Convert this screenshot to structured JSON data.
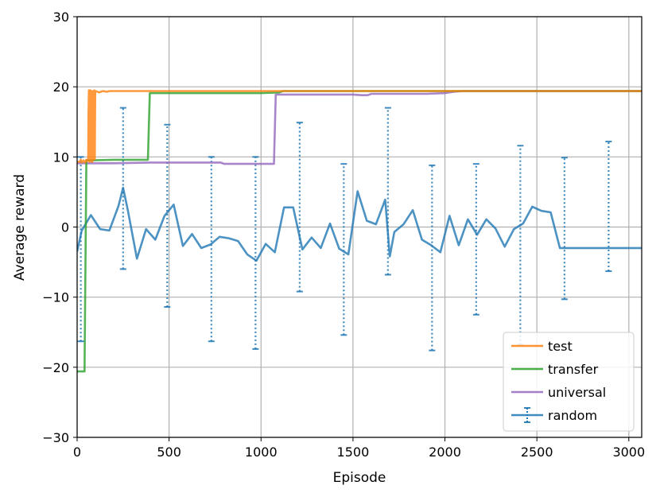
{
  "chart_data": {
    "type": "line",
    "title": "",
    "xlabel": "Episode",
    "ylabel": "Average reward",
    "xlim": [
      0,
      3070
    ],
    "ylim": [
      -30,
      30
    ],
    "xticks": [
      0,
      500,
      1000,
      1500,
      2000,
      2500,
      3000
    ],
    "yticks": [
      -30,
      -20,
      -10,
      0,
      10,
      20,
      30
    ],
    "grid": true,
    "legend_position": "lower-right",
    "series": [
      {
        "name": "test",
        "color": "#ff7f0e",
        "style": "solid",
        "x": [
          0,
          15,
          20,
          25,
          30,
          35,
          40,
          45,
          50,
          55,
          60,
          62,
          64,
          66,
          68,
          70,
          72,
          74,
          76,
          78,
          80,
          82,
          84,
          86,
          88,
          90,
          92,
          94,
          96,
          98,
          100,
          120,
          140,
          160,
          180,
          200,
          300,
          400,
          600,
          800,
          1000,
          1200,
          1500,
          2000,
          2500,
          3070
        ],
        "y": [
          9.3,
          9.3,
          9.6,
          9.2,
          9.4,
          9.5,
          9.3,
          9.2,
          9.6,
          9.4,
          9.5,
          16.0,
          19.5,
          19.2,
          9.3,
          18.8,
          19.5,
          9.4,
          19.3,
          9.5,
          19.4,
          9.3,
          19.1,
          9.6,
          19.4,
          9.6,
          19.3,
          19.5,
          9.7,
          19.2,
          19.4,
          19.2,
          19.4,
          19.3,
          19.4,
          19.4,
          19.4,
          19.4,
          19.4,
          19.4,
          19.4,
          19.4,
          19.4,
          19.4,
          19.4,
          19.4
        ]
      },
      {
        "name": "transfer",
        "color": "#2ca02c",
        "style": "solid",
        "x": [
          0,
          40,
          50,
          60,
          200,
          300,
          385,
          395,
          600,
          800,
          1000,
          1100,
          1120,
          1500,
          2000,
          2500,
          3070
        ],
        "y": [
          -20.6,
          -20.6,
          9.5,
          9.5,
          9.6,
          9.6,
          9.6,
          19.1,
          19.1,
          19.1,
          19.1,
          19.2,
          19.4,
          19.4,
          19.4,
          19.4,
          19.4
        ]
      },
      {
        "name": "universal",
        "color": "#9467bd",
        "style": "solid",
        "x": [
          0,
          200,
          400,
          600,
          700,
          780,
          800,
          900,
          1000,
          1070,
          1080,
          1200,
          1400,
          1500,
          1550,
          1580,
          1600,
          1800,
          1900,
          2000,
          2050,
          2100,
          2500,
          3070
        ],
        "y": [
          9.1,
          9.1,
          9.2,
          9.2,
          9.2,
          9.2,
          9.0,
          9.0,
          9.0,
          9.0,
          18.9,
          18.9,
          18.9,
          18.9,
          18.8,
          18.8,
          19.0,
          19.0,
          19.0,
          19.1,
          19.3,
          19.4,
          19.4,
          19.4
        ]
      },
      {
        "name": "random",
        "color": "#1f77b4",
        "style": "solid",
        "x": [
          0,
          25,
          75,
          125,
          175,
          225,
          250,
          275,
          325,
          375,
          425,
          475,
          525,
          575,
          625,
          675,
          725,
          775,
          825,
          875,
          925,
          975,
          1025,
          1075,
          1125,
          1175,
          1225,
          1275,
          1325,
          1375,
          1425,
          1475,
          1525,
          1575,
          1625,
          1675,
          1700,
          1725,
          1775,
          1825,
          1875,
          1925,
          1975,
          2025,
          2075,
          2125,
          2175,
          2225,
          2275,
          2325,
          2375,
          2425,
          2475,
          2525,
          2575,
          2625,
          2675,
          2725,
          2775,
          2825,
          2875,
          2925,
          2975,
          3025,
          3070
        ],
        "y": [
          -3.5,
          -0.5,
          1.7,
          -0.3,
          -0.5,
          3.0,
          5.6,
          2.5,
          -4.5,
          -0.3,
          -1.8,
          1.6,
          3.2,
          -2.7,
          -1.0,
          -3.0,
          -2.5,
          -1.4,
          -1.6,
          -2.0,
          -3.9,
          -4.8,
          -2.4,
          -3.6,
          2.8,
          2.8,
          -3.2,
          -1.5,
          -3.0,
          0.5,
          -3.1,
          -3.9,
          5.1,
          0.9,
          0.4,
          3.9,
          -4.2,
          -0.7,
          0.4,
          2.4,
          -1.8,
          -2.6,
          -3.6,
          1.6,
          -2.6,
          1.1,
          -1.1,
          1.1,
          -0.2,
          -2.8,
          -0.3,
          0.5,
          2.9,
          2.3,
          2.1,
          -3.0,
          -3.0,
          -3.0,
          -3.0,
          -3.0,
          -3.0,
          -3.0,
          -3.0,
          -3.0,
          -3.0
        ],
        "error_bars": {
          "x": [
            20,
            250,
            490,
            730,
            970,
            1210,
            1450,
            1690,
            1930,
            2170,
            2410,
            2650,
            2890
          ],
          "lower": [
            -16.3,
            -6.0,
            -11.4,
            -16.3,
            -17.4,
            -9.2,
            -15.4,
            -6.8,
            -17.6,
            -12.5,
            -16.8,
            -10.3,
            -6.3
          ],
          "upper": [
            10.0,
            17.0,
            14.6,
            10.0,
            10.0,
            14.9,
            9.0,
            17.0,
            8.8,
            9.0,
            11.6,
            9.9,
            12.2
          ]
        }
      }
    ]
  }
}
